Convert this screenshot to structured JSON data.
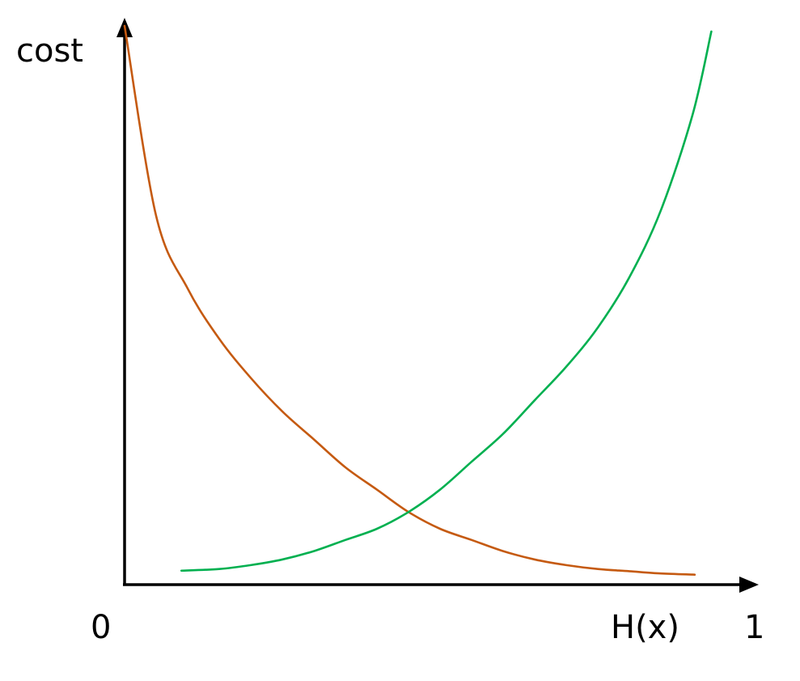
{
  "chart_data": {
    "type": "line",
    "title": "",
    "xlabel": "H(x)",
    "ylabel": "cost",
    "x_tick_labels": [
      "0",
      "1"
    ],
    "xlim": [
      0,
      1
    ],
    "ylim": [
      0,
      1
    ],
    "grid": false,
    "series": [
      {
        "color": "#c55a11",
        "x": [
          0.0,
          0.05,
          0.1,
          0.15,
          0.2,
          0.25,
          0.3,
          0.35,
          0.4,
          0.45,
          0.5,
          0.55,
          0.6,
          0.65,
          0.7,
          0.75,
          0.8,
          0.85,
          0.9,
          0.9
        ],
        "values": [
          1.0,
          0.66,
          0.53,
          0.44,
          0.37,
          0.31,
          0.26,
          0.21,
          0.17,
          0.13,
          0.1,
          0.08,
          0.06,
          0.045,
          0.035,
          0.028,
          0.024,
          0.02,
          0.018,
          0.018
        ]
      },
      {
        "color": "#00b050",
        "x": [
          0.09,
          0.15,
          0.2,
          0.25,
          0.3,
          0.35,
          0.4,
          0.45,
          0.5,
          0.55,
          0.6,
          0.65,
          0.7,
          0.75,
          0.8,
          0.85,
          0.9,
          0.93
        ],
        "values": [
          0.025,
          0.028,
          0.035,
          0.045,
          0.06,
          0.08,
          0.1,
          0.13,
          0.17,
          0.22,
          0.27,
          0.33,
          0.39,
          0.46,
          0.55,
          0.67,
          0.84,
          0.99
        ]
      }
    ]
  }
}
